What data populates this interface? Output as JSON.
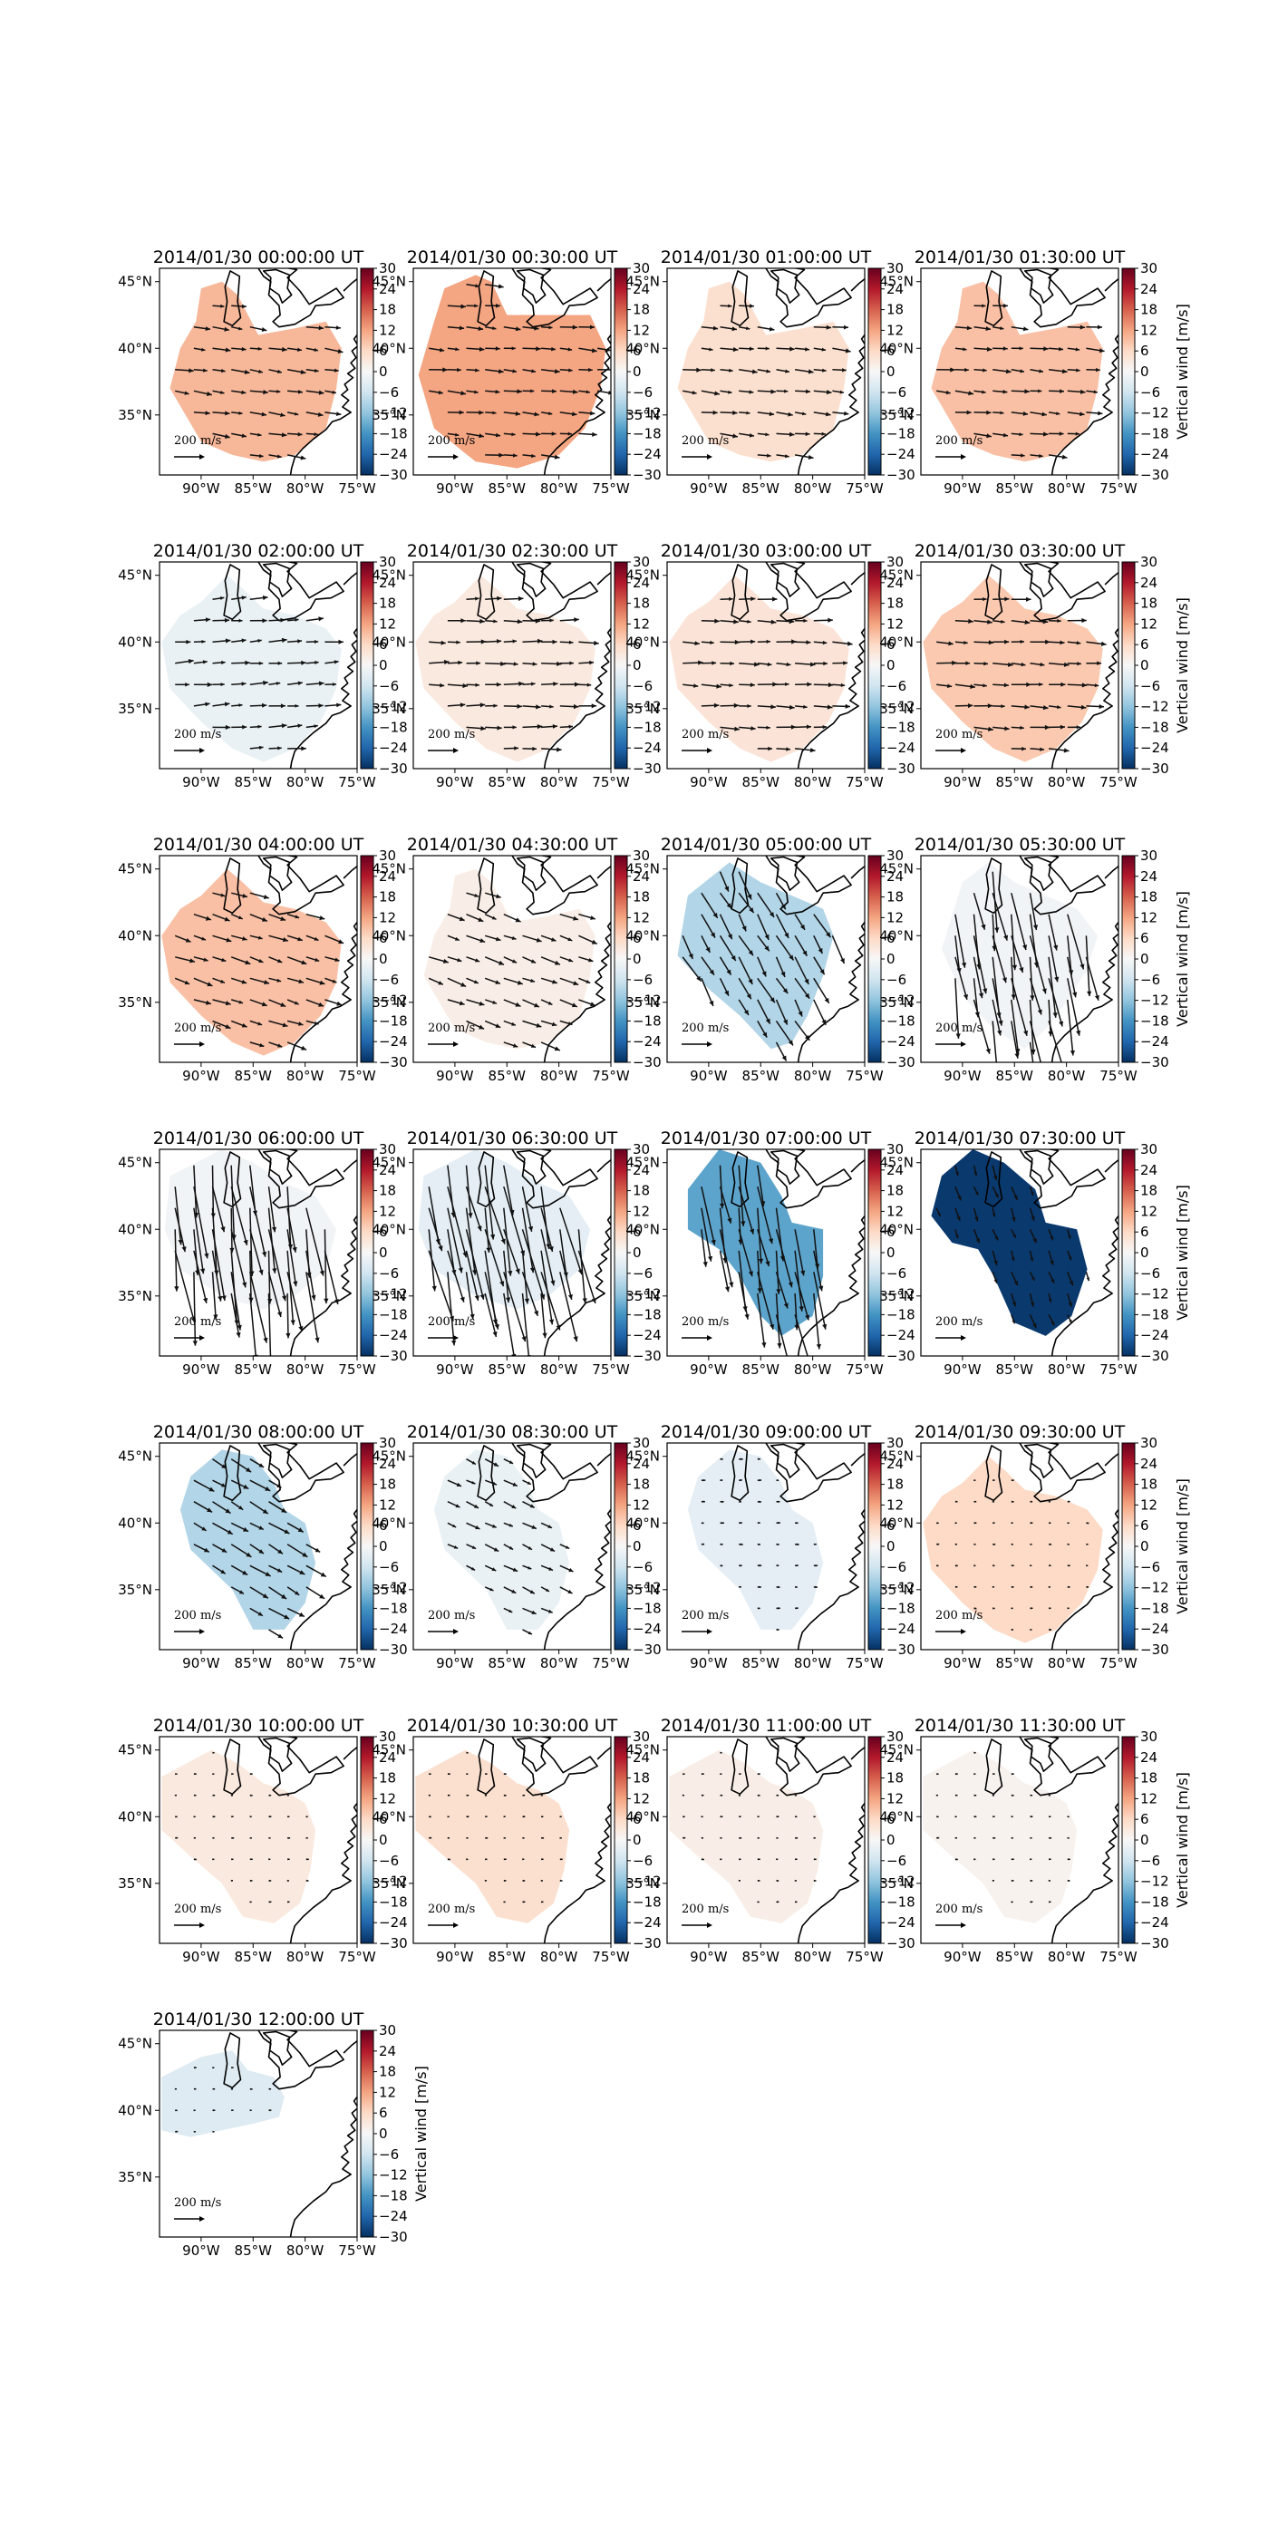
{
  "figure": {
    "colorbar_label": "Vertical wind [m/s]",
    "colorbar_ticks": [
      30,
      24,
      18,
      12,
      6,
      0,
      -6,
      -12,
      -18,
      -24,
      -30
    ],
    "lat_ticks": [
      "45°N",
      "40°N",
      "35°N"
    ],
    "lon_ticks": [
      "90°W",
      "85°W",
      "80°W",
      "75°W"
    ],
    "quiver_key_label": "200 m/s",
    "colormap": "RdBu_r",
    "vmin": -30,
    "vmax": 30
  },
  "chart_data": {
    "type": "heatmap",
    "description_of_values": "Approximate mean vertical wind (m/s) of the shaded map region in each time panel",
    "series": [
      {
        "title": "2014/01/30 00:00:00 UT",
        "value": 10,
        "vector_scale": 0.55,
        "vector_angle": 8,
        "shape": "a"
      },
      {
        "title": "2014/01/30 00:30:00 UT",
        "value": 12,
        "vector_scale": 0.55,
        "vector_angle": 5,
        "shape": "b"
      },
      {
        "title": "2014/01/30 01:00:00 UT",
        "value": 5,
        "vector_scale": 0.55,
        "vector_angle": 6,
        "shape": "a"
      },
      {
        "title": "2014/01/30 01:30:00 UT",
        "value": 9,
        "vector_scale": 0.55,
        "vector_angle": 5,
        "shape": "a"
      },
      {
        "title": "2014/01/30 02:00:00 UT",
        "value": -2,
        "vector_scale": 0.55,
        "vector_angle": -4,
        "shape": "c"
      },
      {
        "title": "2014/01/30 02:30:00 UT",
        "value": 3,
        "vector_scale": 0.6,
        "vector_angle": 0,
        "shape": "c"
      },
      {
        "title": "2014/01/30 03:00:00 UT",
        "value": 4,
        "vector_scale": 0.6,
        "vector_angle": 2,
        "shape": "c"
      },
      {
        "title": "2014/01/30 03:30:00 UT",
        "value": 8,
        "vector_scale": 0.6,
        "vector_angle": 3,
        "shape": "c"
      },
      {
        "title": "2014/01/30 04:00:00 UT",
        "value": 9,
        "vector_scale": 0.6,
        "vector_angle": 18,
        "shape": "c"
      },
      {
        "title": "2014/01/30 04:30:00 UT",
        "value": 2,
        "vector_scale": 0.6,
        "vector_angle": 20,
        "shape": "a"
      },
      {
        "title": "2014/01/30 05:00:00 UT",
        "value": -9,
        "vector_scale": 0.9,
        "vector_angle": 60,
        "shape": "d"
      },
      {
        "title": "2014/01/30 05:30:00 UT",
        "value": -1,
        "vector_scale": 1.8,
        "vector_angle": 80,
        "shape": "e"
      },
      {
        "title": "2014/01/30 06:00:00 UT",
        "value": -1,
        "vector_scale": 2.2,
        "vector_angle": 82,
        "shape": "f"
      },
      {
        "title": "2014/01/30 06:30:00 UT",
        "value": -3,
        "vector_scale": 2.2,
        "vector_angle": 78,
        "shape": "f"
      },
      {
        "title": "2014/01/30 07:00:00 UT",
        "value": -16,
        "vector_scale": 1.8,
        "vector_angle": 80,
        "shape": "g"
      },
      {
        "title": "2014/01/30 07:30:00 UT",
        "value": -29,
        "vector_scale": 0.45,
        "vector_angle": 70,
        "shape": "h"
      },
      {
        "title": "2014/01/30 08:00:00 UT",
        "value": -9,
        "vector_scale": 0.7,
        "vector_angle": 30,
        "shape": "i"
      },
      {
        "title": "2014/01/30 08:30:00 UT",
        "value": -2,
        "vector_scale": 0.45,
        "vector_angle": 25,
        "shape": "i"
      },
      {
        "title": "2014/01/30 09:00:00 UT",
        "value": -3,
        "vector_scale": 0.12,
        "vector_angle": 0,
        "shape": "i"
      },
      {
        "title": "2014/01/30 09:30:00 UT",
        "value": 6,
        "vector_scale": 0.08,
        "vector_angle": 0,
        "shape": "c"
      },
      {
        "title": "2014/01/30 10:00:00 UT",
        "value": 3,
        "vector_scale": 0.08,
        "vector_angle": 0,
        "shape": "j"
      },
      {
        "title": "2014/01/30 10:30:00 UT",
        "value": 5,
        "vector_scale": 0.08,
        "vector_angle": 0,
        "shape": "j"
      },
      {
        "title": "2014/01/30 11:00:00 UT",
        "value": 2,
        "vector_scale": 0.08,
        "vector_angle": 0,
        "shape": "j"
      },
      {
        "title": "2014/01/30 11:30:00 UT",
        "value": 1,
        "vector_scale": 0.08,
        "vector_angle": 0,
        "shape": "j"
      },
      {
        "title": "2014/01/30 12:00:00 UT",
        "value": -4,
        "vector_scale": 0.08,
        "vector_angle": 0,
        "shape": "k"
      }
    ]
  }
}
